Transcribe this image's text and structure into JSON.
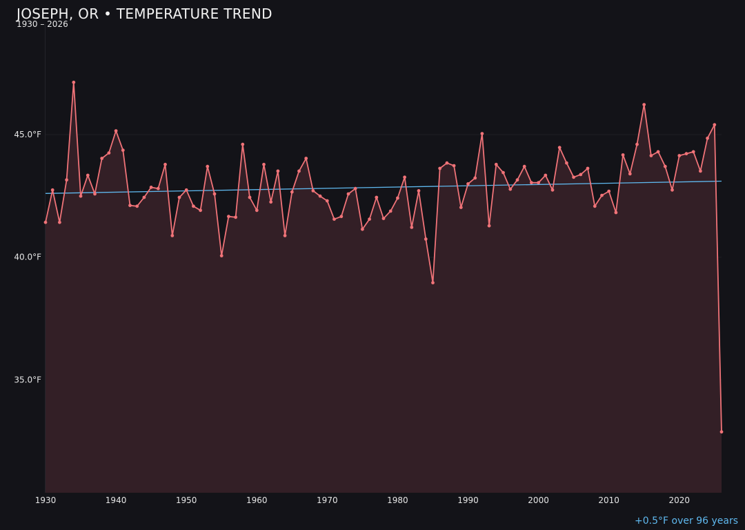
{
  "title": "JOSEPH, OR • TEMPERATURE TREND",
  "subtitle": "1930 – 2026",
  "footnote": "+0.5°F over 96 years",
  "colors": {
    "background": "#131318",
    "line": "#f07378",
    "area": "#331f26",
    "trend": "#5fb8ee",
    "grid": "#1f1f24",
    "text": "#e6e6e6"
  },
  "chart_data": {
    "type": "line",
    "title": "JOSEPH, OR • TEMPERATURE TREND",
    "subtitle": "1930 – 2026",
    "xlabel": "",
    "ylabel": "",
    "xlim": [
      1930,
      2026
    ],
    "ylim": [
      30.4,
      49.5
    ],
    "x_ticks": [
      1930,
      1940,
      1950,
      1960,
      1970,
      1980,
      1990,
      2000,
      2010,
      2020
    ],
    "y_ticks": [
      35.0,
      40.0,
      45.0
    ],
    "y_tick_labels": [
      "35.0°F",
      "40.0°F",
      "45.0°F"
    ],
    "grid": true,
    "series": [
      {
        "x": [
          1930,
          1931,
          1932,
          1933,
          1934,
          1935,
          1936,
          1937,
          1938,
          1939,
          1940,
          1941,
          1942,
          1943,
          1944,
          1945,
          1946,
          1947,
          1948,
          1949,
          1950,
          1951,
          1952,
          1953,
          1954,
          1955,
          1956,
          1957,
          1958,
          1959,
          1960,
          1961,
          1962,
          1963,
          1964,
          1965,
          1966,
          1967,
          1968,
          1969,
          1970,
          1971,
          1972,
          1973,
          1974,
          1975,
          1976,
          1977,
          1978,
          1979,
          1980,
          1981,
          1982,
          1983,
          1984,
          1985,
          1986,
          1987,
          1988,
          1989,
          1990,
          1991,
          1992,
          1993,
          1994,
          1995,
          1996,
          1997,
          1998,
          1999,
          2000,
          2001,
          2002,
          2003,
          2004,
          2005,
          2006,
          2007,
          2008,
          2009,
          2010,
          2011,
          2012,
          2013,
          2014,
          2015,
          2016,
          2017,
          2018,
          2019,
          2020,
          2021,
          2022,
          2023,
          2024,
          2025,
          2026
        ],
        "values": [
          41.42,
          42.74,
          41.42,
          43.15,
          47.13,
          42.49,
          43.34,
          42.58,
          44.03,
          44.25,
          45.15,
          44.36,
          42.11,
          42.08,
          42.44,
          42.85,
          42.8,
          43.78,
          40.88,
          42.44,
          42.74,
          42.08,
          41.91,
          43.7,
          42.58,
          40.06,
          41.66,
          41.63,
          44.6,
          42.44,
          41.91,
          43.78,
          42.25,
          43.51,
          40.88,
          42.66,
          43.51,
          44.03,
          42.71,
          42.49,
          42.3,
          41.55,
          41.66,
          42.58,
          42.8,
          41.14,
          41.55,
          42.44,
          41.58,
          41.88,
          42.41,
          43.26,
          41.22,
          42.71,
          40.74,
          38.96,
          43.62,
          43.84,
          43.73,
          42.03,
          42.99,
          43.23,
          45.04,
          41.28,
          43.78,
          43.45,
          42.77,
          43.15,
          43.7,
          43.04,
          43.04,
          43.34,
          42.74,
          44.47,
          43.84,
          43.26,
          43.37,
          43.62,
          42.08,
          42.52,
          42.69,
          41.82,
          44.17,
          43.4,
          44.6,
          46.22,
          44.14,
          44.3,
          43.7,
          42.74,
          44.14,
          44.22,
          44.3,
          43.51,
          44.85,
          45.4,
          32.88
        ]
      }
    ],
    "trend": {
      "start": [
        1930,
        42.6
      ],
      "end": [
        2026,
        43.1
      ]
    }
  }
}
